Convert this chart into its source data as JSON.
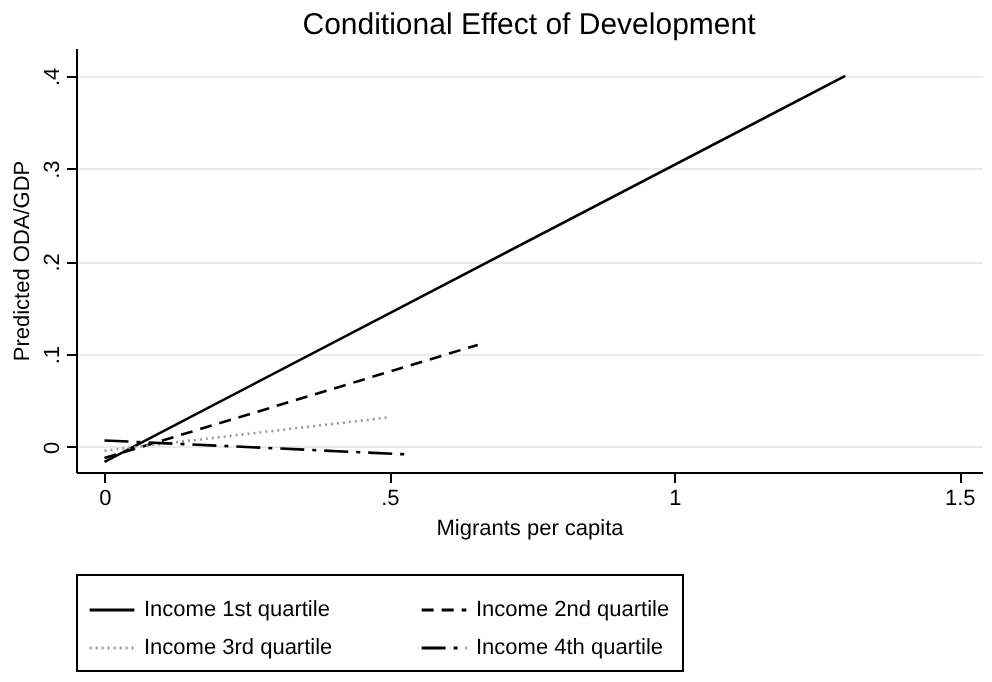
{
  "chart_data": {
    "type": "line",
    "title": "Conditional Effect of Development",
    "xlabel": "Migrants per capita",
    "ylabel": "Predicted ODA/GDP",
    "xlim": [
      -0.05,
      1.54
    ],
    "ylim": [
      -0.027,
      0.43
    ],
    "xticks": [
      0,
      {
        "value": 0.5,
        "label": ".5"
      },
      1,
      1.5
    ],
    "yticks": [
      0,
      {
        "value": 0.1,
        "label": ".1"
      },
      {
        "value": 0.2,
        "label": ".2"
      },
      {
        "value": 0.3,
        "label": ".3"
      },
      {
        "value": 0.4,
        "label": ".4"
      }
    ],
    "grid": "y",
    "legend": "bottom",
    "marker": "none",
    "series": [
      {
        "name": "Income 1st quartile",
        "color": "#000000",
        "line_style": "solid",
        "x": [
          0,
          1.3
        ],
        "values": [
          -0.016,
          0.4
        ]
      },
      {
        "name": "Income 2nd quartile",
        "color": "#000000",
        "line_style": "dashed",
        "x": [
          0,
          0.655
        ],
        "values": [
          -0.012,
          0.11
        ]
      },
      {
        "name": "Income 3rd quartile",
        "color": "#999999",
        "line_style": "dotted",
        "x": [
          0,
          0.5
        ],
        "values": [
          -0.004,
          0.032
        ]
      },
      {
        "name": "Income 4th quartile",
        "color": "#000000",
        "line_style": "dashdot",
        "x": [
          0,
          0.53
        ],
        "values": [
          0.007,
          -0.008
        ]
      }
    ]
  }
}
